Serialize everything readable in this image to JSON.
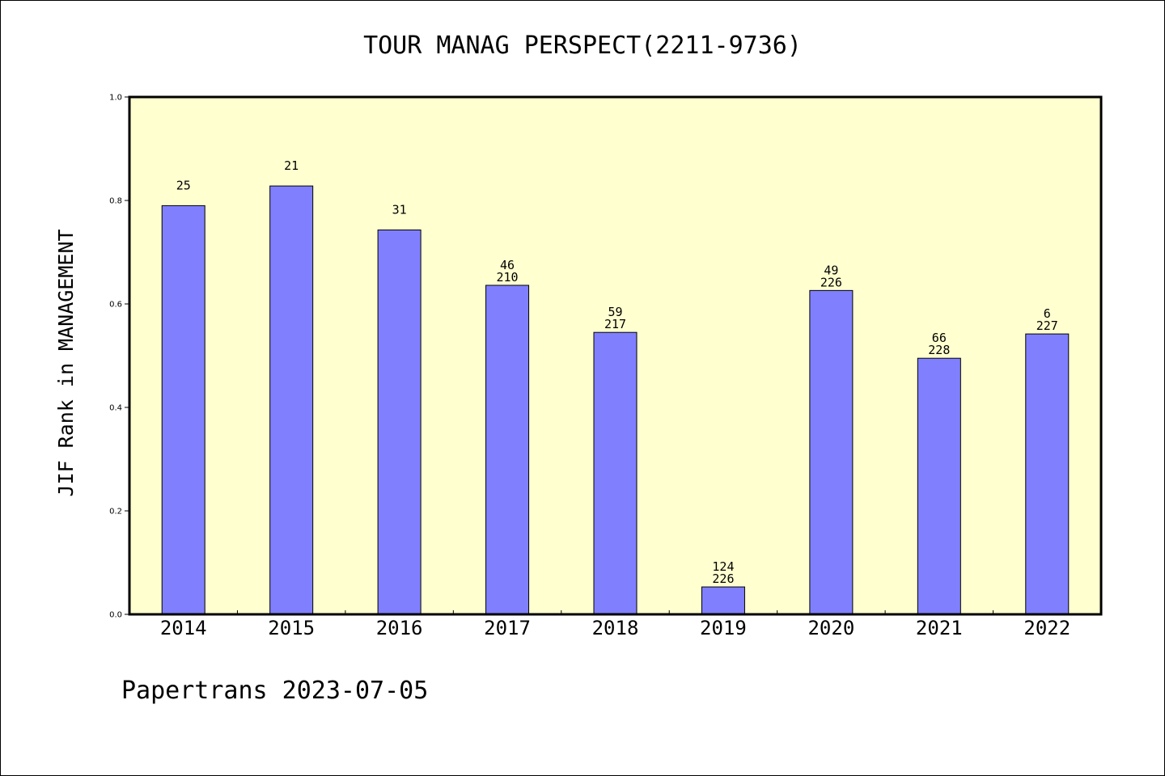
{
  "chart_data": {
    "type": "bar",
    "title": "TOUR MANAG PERSPECT(2211-9736)",
    "ylabel": "JIF Rank in MANAGEMENT",
    "xlabel": "",
    "ylim": [
      0,
      1.0
    ],
    "yticks": [
      "0.0",
      "0.2",
      "0.4",
      "0.6",
      "0.8",
      "1.0"
    ],
    "categories": [
      "2014",
      "2015",
      "2016",
      "2017",
      "2018",
      "2019",
      "2020",
      "2021",
      "2022"
    ],
    "values": [
      0.79,
      0.828,
      0.743,
      0.636,
      0.545,
      0.053,
      0.626,
      0.495,
      0.542
    ],
    "rank_labels": [
      "25",
      "21",
      "31",
      "46",
      "59",
      "124",
      "49",
      "66",
      "6"
    ],
    "total_labels": [
      "",
      "",
      "",
      "210",
      "217",
      "226",
      "226",
      "228",
      "227"
    ],
    "bar_color": "#8080ff",
    "plot_background": "#ffffd0",
    "grid": false,
    "legend": "none"
  },
  "footer": "Papertrans 2023-07-05"
}
